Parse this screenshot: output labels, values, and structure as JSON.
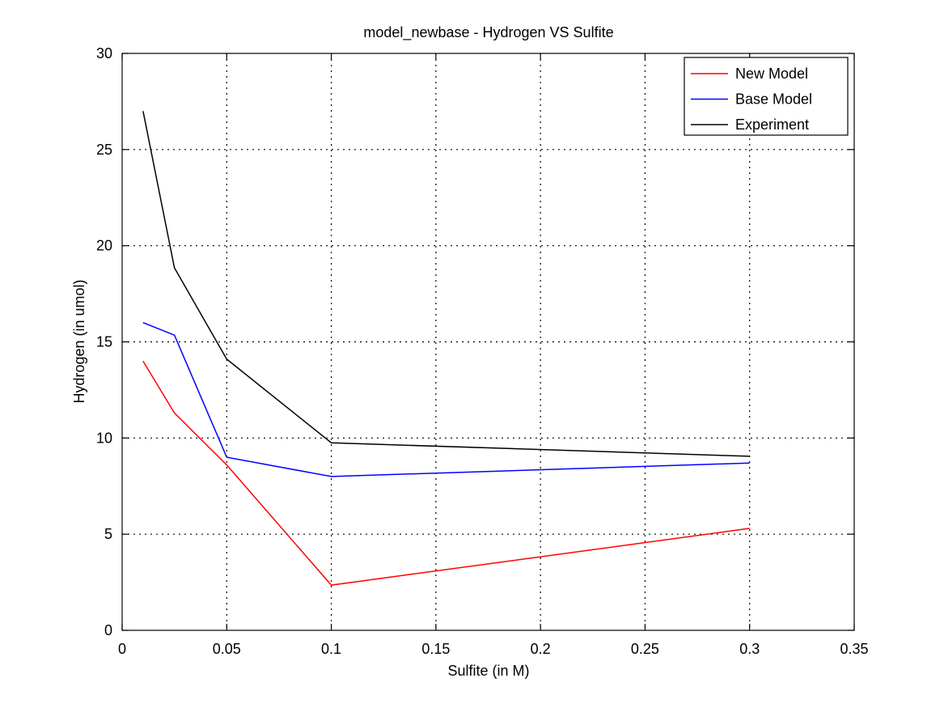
{
  "chart_data": {
    "type": "line",
    "title": "model_newbase - Hydrogen VS Sulfite",
    "xlabel": "Sulfite (in M)",
    "ylabel": "Hydrogen (in umol)",
    "xlim": [
      0,
      0.35
    ],
    "ylim": [
      0,
      30
    ],
    "xticks": [
      0,
      0.05,
      0.1,
      0.15,
      0.2,
      0.25,
      0.3,
      0.35
    ],
    "xtick_labels": [
      "0",
      "0.05",
      "0.1",
      "0.15",
      "0.2",
      "0.25",
      "0.3",
      "0.35"
    ],
    "yticks": [
      0,
      5,
      10,
      15,
      20,
      25,
      30
    ],
    "ytick_labels": [
      "0",
      "5",
      "10",
      "15",
      "20",
      "25",
      "30"
    ],
    "grid": true,
    "legend_position": "top-right",
    "x": [
      0.01,
      0.025,
      0.05,
      0.1,
      0.3
    ],
    "series": [
      {
        "name": "New Model",
        "color": "#ff0000",
        "values": [
          14.0,
          11.3,
          8.6,
          2.35,
          5.3
        ]
      },
      {
        "name": "Base Model",
        "color": "#0000ff",
        "values": [
          16.0,
          15.35,
          9.0,
          8.0,
          8.7
        ]
      },
      {
        "name": "Experiment",
        "color": "#000000",
        "values": [
          27.0,
          18.85,
          14.1,
          9.75,
          9.05
        ]
      }
    ]
  }
}
